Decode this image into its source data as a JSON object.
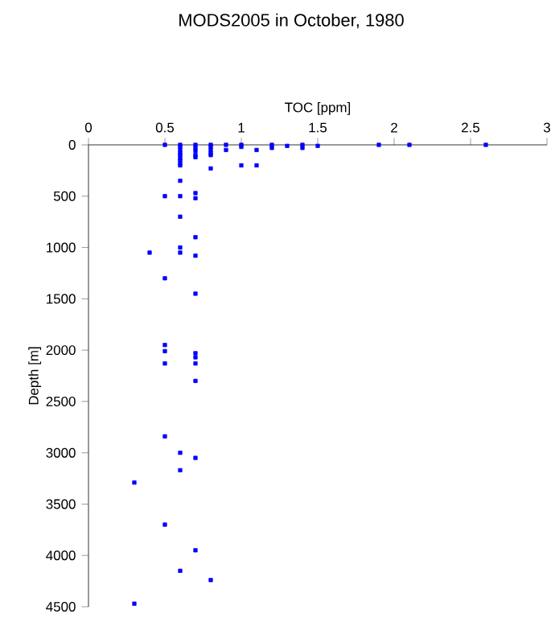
{
  "chart_data": {
    "type": "scatter",
    "title": "MODS2005 in October, 1980",
    "xlabel": "TOC [ppm]",
    "ylabel": "Depth [m]",
    "x": [
      0.5,
      0.5,
      0.5,
      0.5,
      0.5,
      0.5,
      0.5,
      0.5,
      0.3,
      0.3,
      0.4,
      0.6,
      0.6,
      0.6,
      0.6,
      0.6,
      0.6,
      0.6,
      0.6,
      0.6,
      0.6,
      0.6,
      0.6,
      0.6,
      0.6,
      0.6,
      0.6,
      0.6,
      0.7,
      0.7,
      0.7,
      0.7,
      0.7,
      0.7,
      0.7,
      0.7,
      0.7,
      0.7,
      0.7,
      0.7,
      0.7,
      0.7,
      0.7,
      0.7,
      0.8,
      0.8,
      0.8,
      0.8,
      0.8,
      0.8,
      0.8,
      0.9,
      0.9,
      1.0,
      1.0,
      1.0,
      1.1,
      1.1,
      1.2,
      1.2,
      1.3,
      1.4,
      1.4,
      1.5,
      1.9,
      2.1,
      2.6
    ],
    "values": [
      0,
      500,
      1300,
      1950,
      2010,
      2130,
      2840,
      3700,
      3290,
      4470,
      1050,
      0,
      20,
      50,
      80,
      100,
      130,
      150,
      180,
      200,
      350,
      500,
      700,
      1000,
      1050,
      3000,
      3170,
      4150,
      0,
      30,
      60,
      100,
      120,
      470,
      520,
      900,
      1080,
      1450,
      2030,
      2070,
      2130,
      2300,
      3050,
      3950,
      0,
      20,
      50,
      80,
      100,
      230,
      4240,
      0,
      50,
      0,
      20,
      200,
      50,
      200,
      0,
      30,
      10,
      0,
      30,
      10,
      0,
      0,
      0
    ],
    "color": "#0000ff",
    "marker": "square",
    "xlim": [
      0,
      3
    ],
    "xticks": [
      0,
      0.5,
      1,
      1.5,
      2,
      2.5,
      3
    ],
    "ylim": [
      4500,
      0
    ],
    "yticks": [
      0,
      500,
      1000,
      1500,
      2000,
      2500,
      3000,
      3500,
      4000,
      4500
    ],
    "grid": false
  }
}
